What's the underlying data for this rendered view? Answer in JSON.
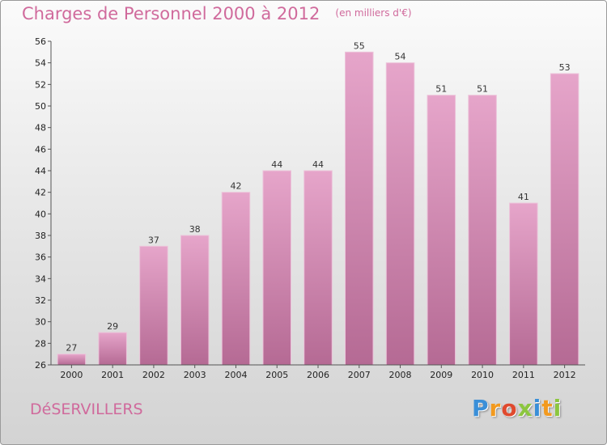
{
  "header": {
    "title": "Charges de Personnel 2000 à 2012",
    "subtitle": "(en milliers d'€)"
  },
  "footer": {
    "commune": "DéSERVILLERS",
    "logo": {
      "letters": [
        "P",
        "r",
        "o",
        "x",
        "i",
        "t",
        "i"
      ],
      "colors": [
        "#3a8fd8",
        "#f29a1f",
        "#e04a2e",
        "#8cc63f",
        "#3a8fd8",
        "#f29a1f",
        "#8cc63f"
      ]
    }
  },
  "colors": {
    "bar_top": "#e6a5ca",
    "bar_bottom": "#b56a94",
    "title": "#d06a9c"
  },
  "chart_data": {
    "type": "bar",
    "title": "Charges de Personnel 2000 à 2012",
    "subtitle": "(en milliers d'€)",
    "categories": [
      "2000",
      "2001",
      "2002",
      "2003",
      "2004",
      "2005",
      "2006",
      "2007",
      "2008",
      "2009",
      "2010",
      "2011",
      "2012"
    ],
    "values": [
      27,
      29,
      37,
      38,
      42,
      44,
      44,
      55,
      54,
      51,
      51,
      41,
      53
    ],
    "ylim": [
      26,
      56
    ],
    "yticks": [
      26,
      28,
      30,
      32,
      34,
      36,
      38,
      40,
      42,
      44,
      46,
      48,
      50,
      52,
      54,
      56
    ],
    "grid": false,
    "legend": "none"
  }
}
